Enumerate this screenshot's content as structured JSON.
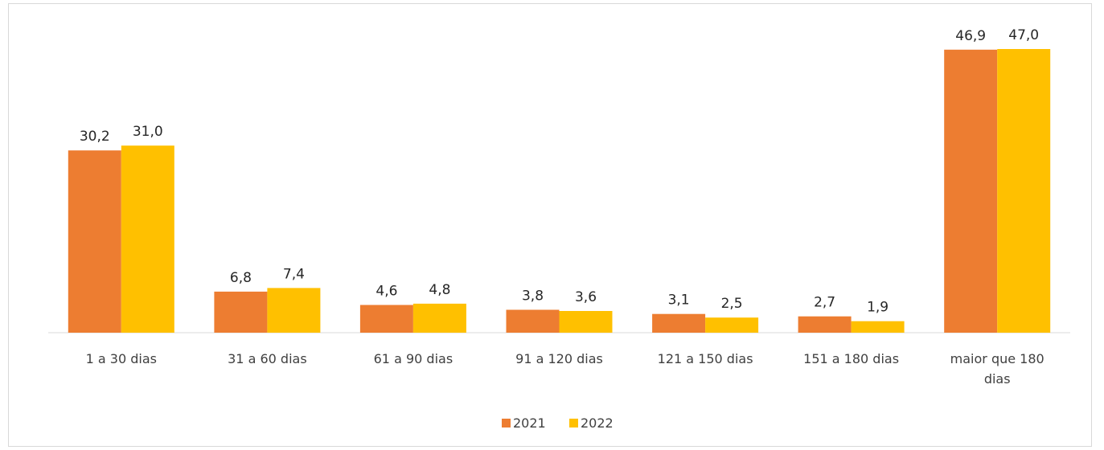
{
  "chart_data": {
    "type": "bar",
    "title": "",
    "xlabel": "",
    "ylabel": "",
    "ylim": [
      0,
      50
    ],
    "grid": false,
    "legend_position": "bottom",
    "categories": [
      [
        "1 a 30 dias"
      ],
      [
        "31 a 60 dias"
      ],
      [
        "61 a 90 dias"
      ],
      [
        "91 a 120 dias"
      ],
      [
        "121 a 150 dias"
      ],
      [
        "151 a 180 dias"
      ],
      [
        "maior que 180",
        "dias"
      ]
    ],
    "series": [
      {
        "name": "2021",
        "color": "#ED7D31",
        "values": [
          30.2,
          6.8,
          4.6,
          3.8,
          3.1,
          2.7,
          46.9
        ],
        "labels": [
          "30,2",
          "6,8",
          "4,6",
          "3,8",
          "3,1",
          "2,7",
          "46,9"
        ]
      },
      {
        "name": "2022",
        "color": "#FFC000",
        "values": [
          31.0,
          7.4,
          4.8,
          3.6,
          2.5,
          1.9,
          47.0
        ],
        "labels": [
          "31,0",
          "7,4",
          "4,8",
          "3,6",
          "2,5",
          "1,9",
          "47,0"
        ]
      }
    ]
  }
}
